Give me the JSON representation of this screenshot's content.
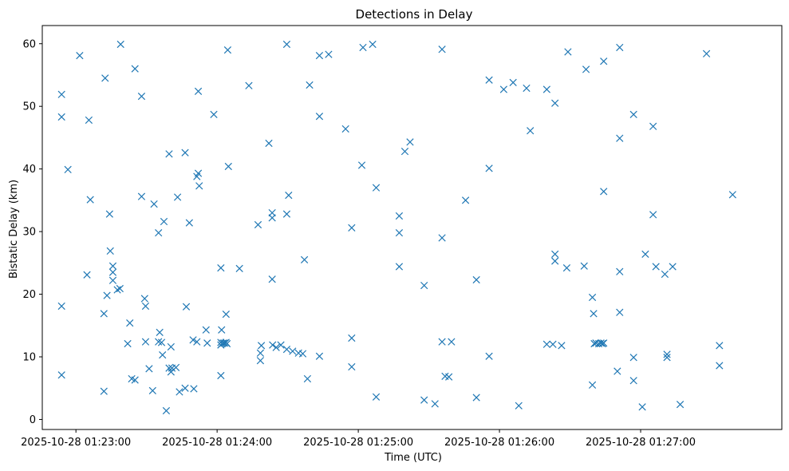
{
  "chart_data": {
    "type": "scatter",
    "title": "Detections in Delay",
    "xlabel": "Time (UTC)",
    "ylabel": "Bistatic Delay (km)",
    "marker": "x",
    "color": "#1f77b4",
    "grid": false,
    "xlim_seconds": [
      -14.3,
      300.0
    ],
    "xlim_ref": "2025-10-28 01:23:00",
    "ylim": [
      -1.6,
      62.9
    ],
    "xticks": [
      {
        "seconds": 0,
        "label": "2025-10-28 01:23:00"
      },
      {
        "seconds": 60,
        "label": "2025-10-28 01:24:00"
      },
      {
        "seconds": 120,
        "label": "2025-10-28 01:25:00"
      },
      {
        "seconds": 180,
        "label": "2025-10-28 01:26:00"
      },
      {
        "seconds": 240,
        "label": "2025-10-28 01:27:00"
      }
    ],
    "yticks": [
      0,
      10,
      20,
      30,
      40,
      50,
      60
    ],
    "points": [
      [
        -6.1,
        51.9
      ],
      [
        -6.1,
        48.3
      ],
      [
        -6.1,
        18.1
      ],
      [
        -6.1,
        7.1
      ],
      [
        -3.4,
        39.9
      ],
      [
        1.6,
        58.1
      ],
      [
        4.7,
        23.1
      ],
      [
        5.5,
        47.8
      ],
      [
        6.1,
        35.1
      ],
      [
        11.9,
        16.9
      ],
      [
        11.9,
        4.5
      ],
      [
        12.4,
        54.5
      ],
      [
        13.2,
        19.8
      ],
      [
        14.3,
        32.8
      ],
      [
        14.6,
        26.9
      ],
      [
        15.7,
        24.5
      ],
      [
        15.7,
        23.5
      ],
      [
        15.7,
        22.2
      ],
      [
        17.6,
        20.7
      ],
      [
        18.7,
        20.9
      ],
      [
        19.0,
        59.9
      ],
      [
        22.0,
        12.1
      ],
      [
        22.9,
        15.4
      ],
      [
        23.7,
        6.5
      ],
      [
        25.1,
        6.3
      ],
      [
        25.1,
        56.0
      ],
      [
        27.9,
        51.6
      ],
      [
        27.9,
        35.6
      ],
      [
        29.2,
        19.3
      ],
      [
        29.6,
        12.4
      ],
      [
        29.6,
        18.1
      ],
      [
        31.1,
        8.1
      ],
      [
        32.6,
        4.6
      ],
      [
        33.2,
        34.4
      ],
      [
        35.1,
        29.8
      ],
      [
        35.1,
        12.4
      ],
      [
        35.6,
        13.9
      ],
      [
        36.4,
        12.3
      ],
      [
        36.8,
        10.3
      ],
      [
        37.4,
        31.6
      ],
      [
        38.4,
        1.4
      ],
      [
        39.6,
        42.4
      ],
      [
        39.6,
        8.2
      ],
      [
        40.4,
        7.6
      ],
      [
        40.4,
        11.6
      ],
      [
        40.8,
        8.2
      ],
      [
        42.5,
        8.3
      ],
      [
        43.2,
        35.5
      ],
      [
        44.0,
        4.4
      ],
      [
        46.4,
        5.0
      ],
      [
        46.4,
        42.6
      ],
      [
        46.9,
        18.0
      ],
      [
        48.2,
        31.4
      ],
      [
        49.8,
        12.7
      ],
      [
        50.1,
        4.9
      ],
      [
        51.4,
        12.4
      ],
      [
        51.4,
        38.8
      ],
      [
        52.0,
        52.4
      ],
      [
        52.0,
        39.3
      ],
      [
        52.4,
        37.3
      ],
      [
        55.3,
        14.3
      ],
      [
        55.8,
        12.2
      ],
      [
        58.6,
        48.7
      ],
      [
        61.6,
        11.9
      ],
      [
        61.6,
        12.3
      ],
      [
        61.6,
        24.2
      ],
      [
        61.6,
        7.0
      ],
      [
        61.9,
        14.3
      ],
      [
        62.1,
        12.1
      ],
      [
        62.6,
        12.2
      ],
      [
        63.2,
        12.2
      ],
      [
        63.8,
        12.3
      ],
      [
        63.8,
        16.8
      ],
      [
        64.2,
        12.1
      ],
      [
        64.5,
        59.0
      ],
      [
        64.8,
        40.4
      ],
      [
        69.5,
        24.1
      ],
      [
        73.5,
        53.3
      ],
      [
        77.4,
        31.1
      ],
      [
        78.4,
        10.6
      ],
      [
        78.4,
        9.4
      ],
      [
        78.8,
        11.8
      ],
      [
        82.0,
        44.1
      ],
      [
        83.4,
        22.4
      ],
      [
        83.4,
        32.2
      ],
      [
        83.4,
        33.0
      ],
      [
        83.6,
        11.9
      ],
      [
        85.1,
        11.5
      ],
      [
        87.1,
        11.9
      ],
      [
        89.6,
        32.8
      ],
      [
        89.6,
        59.9
      ],
      [
        89.6,
        11.2
      ],
      [
        90.4,
        35.8
      ],
      [
        92.1,
        10.9
      ],
      [
        94.6,
        10.6
      ],
      [
        96.4,
        10.5
      ],
      [
        97.1,
        25.5
      ],
      [
        98.4,
        6.5
      ],
      [
        99.3,
        53.4
      ],
      [
        103.5,
        48.4
      ],
      [
        103.5,
        58.1
      ],
      [
        103.5,
        10.1
      ],
      [
        107.4,
        58.3
      ],
      [
        114.6,
        46.4
      ],
      [
        117.2,
        30.6
      ],
      [
        117.2,
        13.0
      ],
      [
        117.2,
        8.4
      ],
      [
        121.5,
        40.6
      ],
      [
        122.0,
        59.4
      ],
      [
        126.1,
        59.9
      ],
      [
        127.6,
        37.0
      ],
      [
        127.6,
        3.6
      ],
      [
        137.4,
        32.5
      ],
      [
        137.4,
        29.8
      ],
      [
        137.4,
        24.4
      ],
      [
        139.8,
        42.8
      ],
      [
        142.0,
        44.3
      ],
      [
        148.0,
        21.4
      ],
      [
        148.0,
        3.1
      ],
      [
        152.6,
        2.5
      ],
      [
        155.6,
        59.1
      ],
      [
        155.6,
        29.0
      ],
      [
        155.6,
        12.4
      ],
      [
        156.9,
        6.9
      ],
      [
        158.5,
        6.8
      ],
      [
        159.6,
        12.4
      ],
      [
        165.6,
        35.0
      ],
      [
        170.2,
        22.3
      ],
      [
        170.2,
        3.5
      ],
      [
        175.6,
        54.2
      ],
      [
        175.6,
        40.1
      ],
      [
        175.6,
        10.1
      ],
      [
        181.8,
        52.7
      ],
      [
        185.8,
        53.8
      ],
      [
        188.2,
        2.2
      ],
      [
        191.5,
        52.9
      ],
      [
        193.1,
        46.1
      ],
      [
        200.1,
        52.7
      ],
      [
        200.1,
        12.0
      ],
      [
        202.7,
        12.0
      ],
      [
        203.6,
        26.4
      ],
      [
        203.6,
        50.5
      ],
      [
        203.6,
        25.3
      ],
      [
        206.4,
        11.8
      ],
      [
        208.6,
        24.2
      ],
      [
        209.1,
        58.7
      ],
      [
        216.0,
        24.5
      ],
      [
        216.8,
        55.9
      ],
      [
        219.5,
        19.5
      ],
      [
        219.5,
        5.5
      ],
      [
        220.0,
        16.9
      ],
      [
        220.3,
        12.1
      ],
      [
        221.0,
        12.2
      ],
      [
        222.2,
        12.1
      ],
      [
        223.1,
        12.2
      ],
      [
        223.8,
        12.1
      ],
      [
        224.3,
        57.2
      ],
      [
        224.3,
        36.4
      ],
      [
        224.3,
        12.2
      ],
      [
        230.1,
        7.7
      ],
      [
        231.1,
        59.4
      ],
      [
        231.1,
        44.9
      ],
      [
        231.1,
        17.1
      ],
      [
        231.1,
        23.6
      ],
      [
        237.0,
        48.7
      ],
      [
        237.0,
        9.9
      ],
      [
        237.0,
        6.2
      ],
      [
        240.7,
        2.0
      ],
      [
        242.0,
        26.4
      ],
      [
        245.3,
        32.7
      ],
      [
        245.3,
        46.8
      ],
      [
        246.5,
        24.4
      ],
      [
        250.3,
        23.2
      ],
      [
        251.2,
        10.4
      ],
      [
        251.2,
        9.9
      ],
      [
        253.6,
        24.4
      ],
      [
        256.8,
        2.4
      ],
      [
        268.0,
        58.4
      ],
      [
        273.5,
        11.8
      ],
      [
        273.5,
        8.6
      ],
      [
        279.1,
        35.9
      ]
    ]
  }
}
